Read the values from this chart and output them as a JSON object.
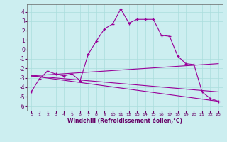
{
  "xlabel": "Windchill (Refroidissement éolien,°C)",
  "background_color": "#cceef0",
  "grid_color": "#aadddd",
  "line_color": "#990099",
  "ylim": [
    -6.5,
    4.8
  ],
  "xlim": [
    -0.5,
    23.5
  ],
  "yticks": [
    -6,
    -5,
    -4,
    -3,
    -2,
    -1,
    0,
    1,
    2,
    3,
    4
  ],
  "xticks": [
    0,
    1,
    2,
    3,
    4,
    5,
    6,
    7,
    8,
    9,
    10,
    11,
    12,
    13,
    14,
    15,
    16,
    17,
    18,
    19,
    20,
    21,
    22,
    23
  ],
  "curve1_x": [
    0,
    1,
    2,
    3,
    4,
    5,
    6,
    7,
    8,
    9,
    10,
    11,
    12,
    13,
    14,
    15,
    16,
    17,
    18,
    19,
    20,
    21,
    22,
    23
  ],
  "curve1_y": [
    -4.5,
    -3.1,
    -2.3,
    -2.6,
    -2.8,
    -2.6,
    -3.3,
    -0.5,
    0.9,
    2.2,
    2.7,
    4.3,
    2.8,
    3.2,
    3.2,
    3.2,
    1.5,
    1.4,
    -0.7,
    -1.5,
    -1.6,
    -4.5,
    -5.2,
    -5.5
  ],
  "line1_x": [
    0,
    23
  ],
  "line1_y": [
    -2.8,
    -5.5
  ],
  "line2_x": [
    0,
    23
  ],
  "line2_y": [
    -2.8,
    -1.5
  ],
  "line3_x": [
    0,
    23
  ],
  "line3_y": [
    -2.8,
    -4.5
  ]
}
